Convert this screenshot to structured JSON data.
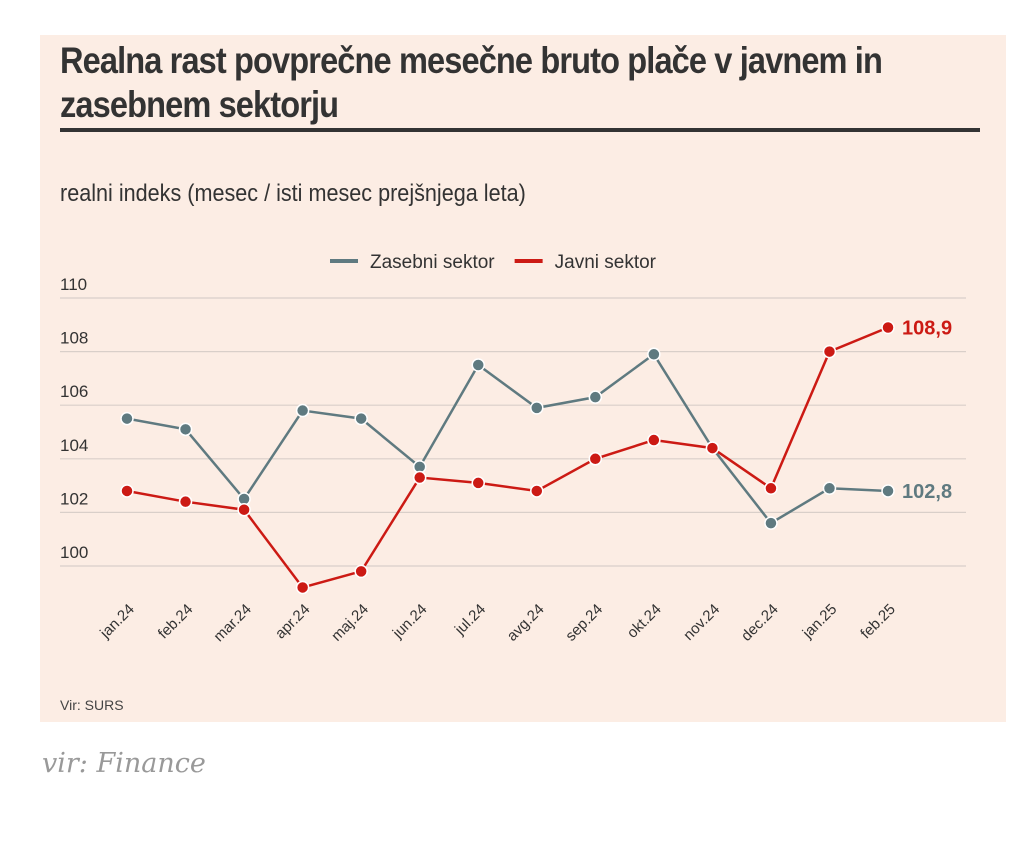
{
  "chart_data": {
    "type": "line",
    "title": "Realna rast povprečne mesečne bruto plače v javnem in zasebnem sektorju",
    "subtitle": "realni indeks (mesec / isti mesec prejšnjega leta)",
    "categories": [
      "jan.24",
      "feb.24",
      "mar.24",
      "apr.24",
      "maj.24",
      "jun.24",
      "jul.24",
      "avg.24",
      "sep.24",
      "okt.24",
      "nov.24",
      "dec.24",
      "jan.25",
      "feb.25"
    ],
    "yticks": [
      "100",
      "102",
      "104",
      "106",
      "108",
      "110"
    ],
    "ylim": [
      98.5,
      110
    ],
    "grid": true,
    "legend_position": "top-center",
    "series": [
      {
        "name": "Zasebni sektor",
        "color": "#5f7a80",
        "values": [
          105.5,
          105.1,
          102.5,
          105.8,
          105.5,
          103.7,
          107.5,
          105.9,
          106.3,
          107.9,
          104.4,
          101.6,
          102.9,
          102.8
        ],
        "end_label": "102,8"
      },
      {
        "name": "Javni sektor",
        "color": "#cc1a14",
        "values": [
          102.8,
          102.4,
          102.1,
          99.2,
          99.8,
          103.3,
          103.1,
          102.8,
          104.0,
          104.7,
          104.4,
          102.9,
          108.0,
          108.9
        ],
        "end_label": "108,9"
      }
    ],
    "source": "Vir: SURS"
  },
  "credit": "vir: Finance"
}
